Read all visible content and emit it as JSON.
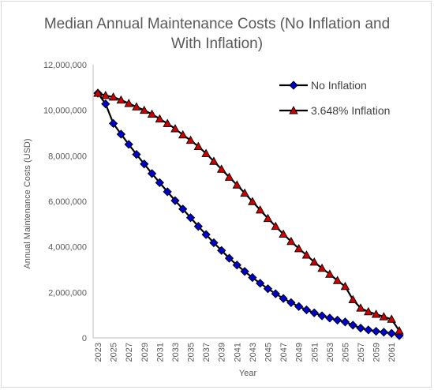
{
  "chart_data": {
    "type": "line",
    "title": "Median Annual Maintenance Costs (No Inflation and With Inflation)",
    "title_lines": [
      "Median Annual Maintenance Costs (No Inflation and",
      "With Inflation)"
    ],
    "xlabel": "Year",
    "ylabel": "Annual Maintenance Costs (USD)",
    "ylim": [
      0,
      12000000
    ],
    "xlim": [
      2023,
      2062
    ],
    "y_ticks": [
      0,
      2000000,
      4000000,
      6000000,
      8000000,
      10000000,
      12000000
    ],
    "y_tick_labels": [
      "0",
      "2,000,000",
      "4,000,000",
      "6,000,000",
      "8,000,000",
      "10,000,000",
      "12,000,000"
    ],
    "x_tick_labels": [
      "2023",
      "2025",
      "2027",
      "2029",
      "2031",
      "2033",
      "2035",
      "2037",
      "2039",
      "2041",
      "2043",
      "2045",
      "2047",
      "2049",
      "2051",
      "2053",
      "2055",
      "2057",
      "2059",
      "2061"
    ],
    "grid": false,
    "legend_position": "top-right",
    "x": [
      2023,
      2024,
      2025,
      2026,
      2027,
      2028,
      2029,
      2030,
      2031,
      2032,
      2033,
      2034,
      2035,
      2036,
      2037,
      2038,
      2039,
      2040,
      2041,
      2042,
      2043,
      2044,
      2045,
      2046,
      2047,
      2048,
      2049,
      2050,
      2051,
      2052,
      2053,
      2054,
      2055,
      2056,
      2057,
      2058,
      2059,
      2060,
      2061,
      2062
    ],
    "series": [
      {
        "name": "No Inflation",
        "color": "#0000cc",
        "marker": "diamond",
        "values": [
          10750000,
          10280000,
          9420000,
          8950000,
          8500000,
          8060000,
          7640000,
          7220000,
          6820000,
          6420000,
          6030000,
          5660000,
          5280000,
          4900000,
          4540000,
          4180000,
          3840000,
          3500000,
          3200000,
          2920000,
          2650000,
          2400000,
          2160000,
          1940000,
          1730000,
          1550000,
          1380000,
          1230000,
          1100000,
          970000,
          870000,
          780000,
          700000,
          560000,
          430000,
          350000,
          290000,
          250000,
          200000,
          100000
        ]
      },
      {
        "name": "3.648% Inflation",
        "color": "#cc0000",
        "marker": "triangle",
        "values": [
          10750000,
          10650000,
          10580000,
          10450000,
          10300000,
          10150000,
          10000000,
          9830000,
          9620000,
          9420000,
          9190000,
          8920000,
          8680000,
          8410000,
          8100000,
          7760000,
          7410000,
          7060000,
          6720000,
          6360000,
          5990000,
          5620000,
          5250000,
          4900000,
          4560000,
          4240000,
          3920000,
          3640000,
          3330000,
          3060000,
          2800000,
          2520000,
          2260000,
          1680000,
          1310000,
          1150000,
          1040000,
          930000,
          820000,
          310000
        ]
      }
    ]
  }
}
